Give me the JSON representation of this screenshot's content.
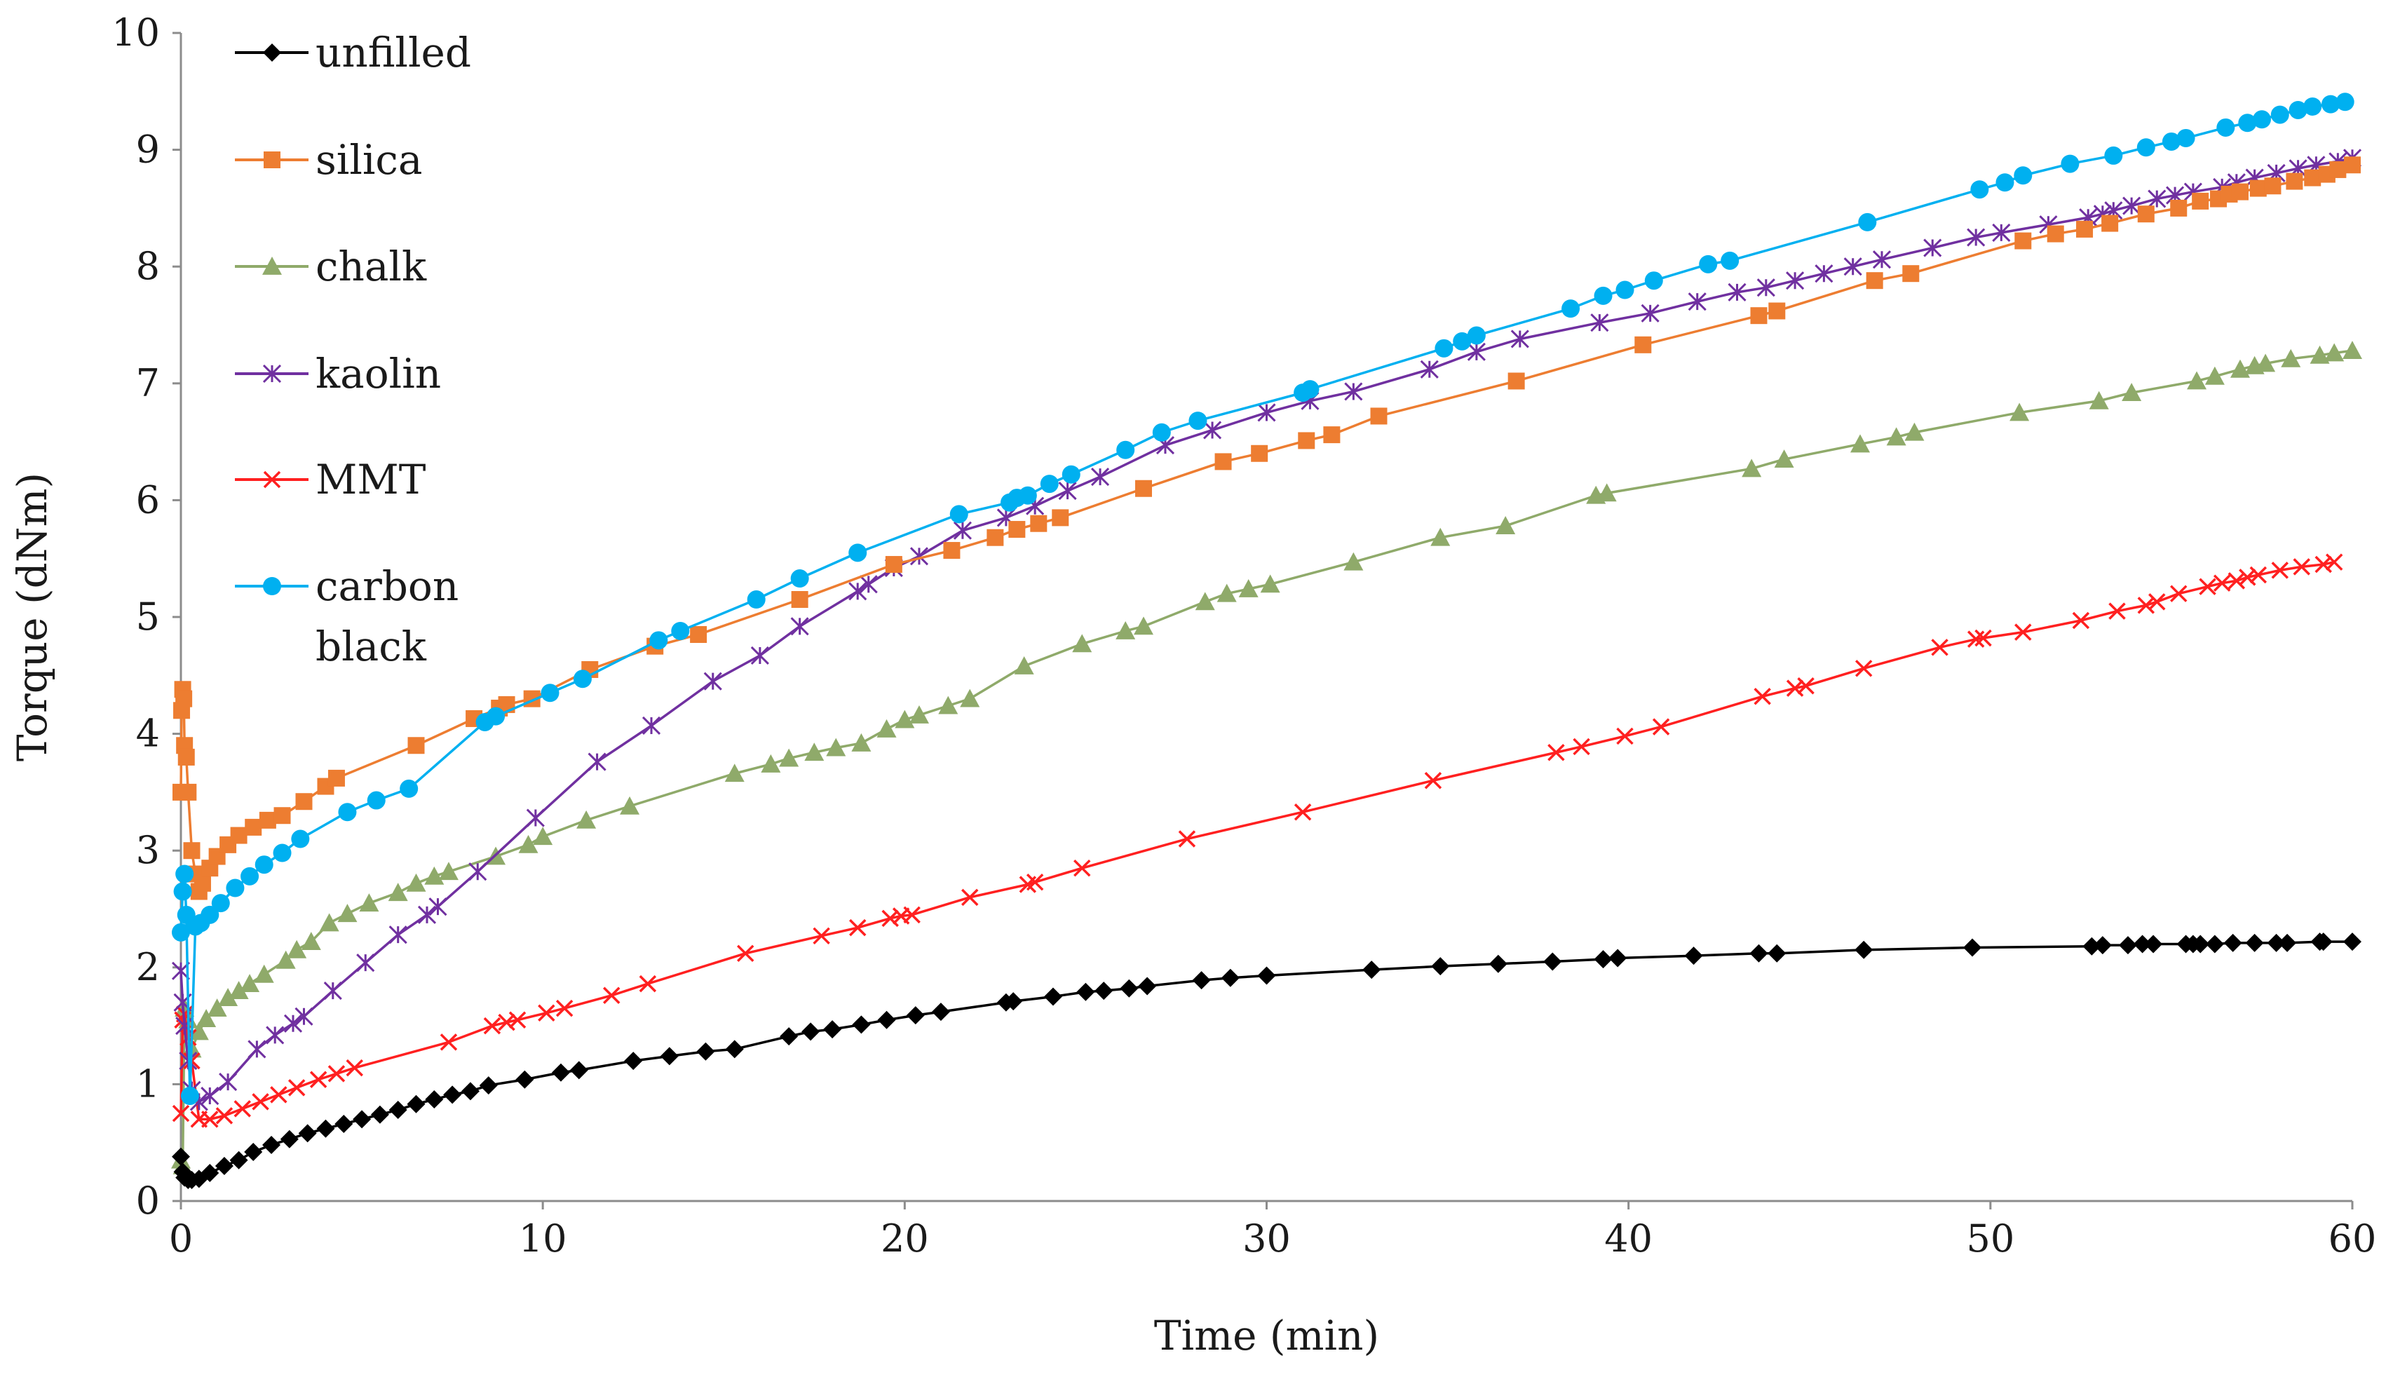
{
  "chart_data": {
    "type": "line",
    "title": "",
    "xlabel": "Time (min)",
    "ylabel": "Torque (dNm)",
    "xlim": [
      0,
      60
    ],
    "ylim": [
      0,
      10
    ],
    "xticks": [
      0,
      10,
      20,
      30,
      40,
      50,
      60
    ],
    "yticks": [
      0,
      1,
      2,
      3,
      4,
      5,
      6,
      7,
      8,
      9,
      10
    ],
    "grid": false,
    "legend_position": "top-left",
    "series": [
      {
        "name": "unfilled",
        "color": "#000000",
        "marker": "diamond",
        "x": [
          0,
          0.05,
          0.1,
          0.2,
          0.3,
          0.5,
          0.8,
          1.2,
          1.6,
          2.0,
          2.5,
          3.0,
          3.5,
          4.0,
          4.5,
          5.0,
          5.5,
          6.0,
          6.5,
          7.0,
          7.5,
          8.0,
          8.5,
          9.5,
          10.5,
          11.0,
          12.5,
          13.5,
          14.5,
          15.3,
          16.8,
          17.4,
          18.0,
          18.8,
          19.5,
          20.3,
          21.0,
          22.8,
          23.0,
          24.1,
          25.0,
          25.5,
          26.2,
          26.7,
          28.2,
          29.0,
          30.0,
          32.9,
          34.8,
          36.4,
          37.9,
          39.3,
          39.7,
          41.8,
          43.6,
          44.1,
          46.5,
          49.5,
          52.8,
          53.1,
          53.8,
          54.2,
          54.5,
          55.4,
          55.6,
          55.8,
          56.2,
          56.7,
          57.3,
          57.9,
          58.2,
          59.1,
          59.2,
          60.0
        ],
        "values": [
          0.38,
          0.25,
          0.2,
          0.18,
          0.18,
          0.19,
          0.24,
          0.3,
          0.35,
          0.42,
          0.48,
          0.53,
          0.58,
          0.62,
          0.66,
          0.7,
          0.74,
          0.78,
          0.83,
          0.87,
          0.91,
          0.94,
          0.99,
          1.04,
          1.1,
          1.12,
          1.2,
          1.24,
          1.28,
          1.3,
          1.41,
          1.45,
          1.47,
          1.51,
          1.55,
          1.59,
          1.62,
          1.7,
          1.71,
          1.75,
          1.79,
          1.8,
          1.82,
          1.84,
          1.89,
          1.91,
          1.93,
          1.98,
          2.01,
          2.03,
          2.05,
          2.07,
          2.08,
          2.1,
          2.12,
          2.12,
          2.15,
          2.17,
          2.18,
          2.19,
          2.19,
          2.2,
          2.2,
          2.2,
          2.2,
          2.2,
          2.2,
          2.21,
          2.21,
          2.21,
          2.21,
          2.22,
          2.22,
          2.22
        ]
      },
      {
        "name": "silica",
        "color": "#ED7D31",
        "marker": "square",
        "x": [
          0,
          0.02,
          0.05,
          0.08,
          0.1,
          0.15,
          0.2,
          0.3,
          0.4,
          0.5,
          0.6,
          0.8,
          1.0,
          1.3,
          1.6,
          2.0,
          2.4,
          2.8,
          3.4,
          4.0,
          4.3,
          6.5,
          8.1,
          8.8,
          9.0,
          9.7,
          11.3,
          13.1,
          14.3,
          17.1,
          19.7,
          21.3,
          22.5,
          23.1,
          23.7,
          24.3,
          26.6,
          28.8,
          29.8,
          31.1,
          31.8,
          33.1,
          36.9,
          40.4,
          43.6,
          44.1,
          46.8,
          47.8,
          50.9,
          51.8,
          52.6,
          53.3,
          54.3,
          55.2,
          55.8,
          56.3,
          56.6,
          56.9,
          57.4,
          57.8,
          58.4,
          58.9,
          59.3,
          59.6,
          60.0
        ],
        "values": [
          3.5,
          4.2,
          4.38,
          4.3,
          3.9,
          3.8,
          3.5,
          3.0,
          2.8,
          2.65,
          2.72,
          2.85,
          2.95,
          3.05,
          3.13,
          3.2,
          3.26,
          3.3,
          3.42,
          3.55,
          3.62,
          3.9,
          4.13,
          4.22,
          4.25,
          4.3,
          4.55,
          4.75,
          4.85,
          5.15,
          5.45,
          5.57,
          5.68,
          5.75,
          5.8,
          5.85,
          6.1,
          6.33,
          6.4,
          6.51,
          6.56,
          6.72,
          7.02,
          7.33,
          7.58,
          7.62,
          7.88,
          7.94,
          8.22,
          8.28,
          8.32,
          8.37,
          8.45,
          8.5,
          8.56,
          8.58,
          8.62,
          8.64,
          8.67,
          8.69,
          8.73,
          8.76,
          8.79,
          8.83,
          8.87
        ]
      },
      {
        "name": "chalk",
        "color": "#8FAA6A",
        "marker": "triangle",
        "x": [
          0,
          0.05,
          0.1,
          0.2,
          0.3,
          0.5,
          0.7,
          1.0,
          1.3,
          1.6,
          1.9,
          2.3,
          2.9,
          3.2,
          3.6,
          4.1,
          4.6,
          5.2,
          6.0,
          6.5,
          7.0,
          7.4,
          8.7,
          9.6,
          10.0,
          11.2,
          12.4,
          15.3,
          16.3,
          16.8,
          17.5,
          18.1,
          18.8,
          19.5,
          20.0,
          20.4,
          21.2,
          21.8,
          23.3,
          24.9,
          26.1,
          26.6,
          28.3,
          28.9,
          29.5,
          30.1,
          32.4,
          34.8,
          36.6,
          39.1,
          39.4,
          43.4,
          44.3,
          46.4,
          47.4,
          47.9,
          50.8,
          53.0,
          53.9,
          55.7,
          56.2,
          56.9,
          57.3,
          57.6,
          58.3,
          59.1,
          59.5,
          60.0
        ],
        "values": [
          0.35,
          0.3,
          1.65,
          1.55,
          1.3,
          1.45,
          1.56,
          1.65,
          1.74,
          1.8,
          1.86,
          1.94,
          2.06,
          2.15,
          2.22,
          2.38,
          2.46,
          2.55,
          2.64,
          2.72,
          2.78,
          2.82,
          2.95,
          3.05,
          3.12,
          3.26,
          3.38,
          3.66,
          3.74,
          3.79,
          3.84,
          3.88,
          3.92,
          4.04,
          4.12,
          4.16,
          4.24,
          4.3,
          4.58,
          4.77,
          4.88,
          4.92,
          5.13,
          5.2,
          5.24,
          5.28,
          5.47,
          5.68,
          5.78,
          6.04,
          6.06,
          6.27,
          6.35,
          6.48,
          6.54,
          6.58,
          6.75,
          6.85,
          6.92,
          7.02,
          7.06,
          7.12,
          7.15,
          7.17,
          7.21,
          7.24,
          7.26,
          7.28
        ]
      },
      {
        "name": "kaolin",
        "color": "#7030A0",
        "marker": "asterisk",
        "x": [
          0,
          0.05,
          0.1,
          0.2,
          0.3,
          0.5,
          0.8,
          1.3,
          2.1,
          2.6,
          3.1,
          3.4,
          4.2,
          5.1,
          6.0,
          6.8,
          7.1,
          8.2,
          9.8,
          11.5,
          13.0,
          14.7,
          16.0,
          17.1,
          18.7,
          19.0,
          19.7,
          20.4,
          21.6,
          22.8,
          23.6,
          24.5,
          25.4,
          27.2,
          28.5,
          30.0,
          31.2,
          32.4,
          34.5,
          35.8,
          37.0,
          39.2,
          40.6,
          41.9,
          43.0,
          43.8,
          44.6,
          45.4,
          46.2,
          47.0,
          48.4,
          49.6,
          50.3,
          51.6,
          52.7,
          53.1,
          53.4,
          53.9,
          54.6,
          55.1,
          55.6,
          56.4,
          56.8,
          57.3,
          57.9,
          58.5,
          59.0,
          59.6,
          60.0
        ],
        "values": [
          1.97,
          1.7,
          1.5,
          1.2,
          0.95,
          0.85,
          0.9,
          1.02,
          1.3,
          1.42,
          1.52,
          1.58,
          1.8,
          2.04,
          2.28,
          2.45,
          2.52,
          2.82,
          3.28,
          3.76,
          4.07,
          4.45,
          4.67,
          4.92,
          5.22,
          5.28,
          5.42,
          5.52,
          5.74,
          5.85,
          5.95,
          6.08,
          6.2,
          6.47,
          6.6,
          6.75,
          6.85,
          6.93,
          7.12,
          7.27,
          7.38,
          7.52,
          7.6,
          7.7,
          7.78,
          7.82,
          7.88,
          7.94,
          8.0,
          8.06,
          8.16,
          8.25,
          8.29,
          8.36,
          8.42,
          8.45,
          8.48,
          8.52,
          8.58,
          8.61,
          8.64,
          8.68,
          8.72,
          8.76,
          8.8,
          8.84,
          8.87,
          8.9,
          8.93
        ]
      },
      {
        "name": "MMT",
        "color": "#FF2020",
        "marker": "x",
        "x": [
          0,
          0.05,
          0.1,
          0.2,
          0.3,
          0.5,
          0.8,
          1.2,
          1.7,
          2.2,
          2.7,
          3.2,
          3.8,
          4.3,
          4.8,
          7.4,
          8.6,
          9.0,
          9.3,
          10.1,
          10.6,
          11.9,
          12.9,
          15.6,
          17.7,
          18.7,
          19.6,
          19.9,
          20.2,
          21.8,
          23.4,
          23.6,
          24.9,
          27.8,
          31.0,
          34.6,
          38.0,
          38.7,
          39.9,
          40.9,
          43.7,
          44.6,
          44.9,
          46.5,
          48.6,
          49.6,
          49.8,
          50.9,
          52.5,
          53.5,
          54.3,
          54.6,
          55.2,
          56.0,
          56.4,
          56.8,
          57.1,
          57.4,
          58.0,
          58.6,
          59.2,
          59.5
        ],
        "values": [
          0.75,
          1.55,
          1.6,
          1.4,
          1.2,
          0.7,
          0.7,
          0.73,
          0.79,
          0.85,
          0.91,
          0.97,
          1.04,
          1.09,
          1.14,
          1.36,
          1.5,
          1.53,
          1.55,
          1.61,
          1.65,
          1.76,
          1.86,
          2.12,
          2.27,
          2.34,
          2.42,
          2.44,
          2.45,
          2.6,
          2.71,
          2.73,
          2.85,
          3.1,
          3.33,
          3.6,
          3.84,
          3.89,
          3.98,
          4.06,
          4.32,
          4.39,
          4.41,
          4.56,
          4.74,
          4.81,
          4.82,
          4.87,
          4.97,
          5.05,
          5.1,
          5.13,
          5.2,
          5.26,
          5.29,
          5.31,
          5.34,
          5.36,
          5.4,
          5.43,
          5.45,
          5.47
        ]
      },
      {
        "name": "carbon black",
        "color": "#00B0F0",
        "marker": "circle",
        "x": [
          0,
          0.05,
          0.1,
          0.15,
          0.25,
          0.4,
          0.55,
          0.8,
          1.1,
          1.5,
          1.9,
          2.3,
          2.8,
          3.3,
          4.6,
          5.4,
          6.3,
          8.4,
          8.7,
          10.2,
          11.1,
          13.2,
          13.8,
          15.9,
          17.1,
          18.7,
          21.5,
          22.9,
          23.1,
          23.4,
          24.0,
          24.6,
          26.1,
          27.1,
          28.1,
          31.0,
          31.2,
          34.9,
          35.4,
          35.8,
          38.4,
          39.3,
          39.9,
          40.7,
          42.2,
          42.8,
          46.6,
          49.7,
          50.4,
          50.9,
          52.2,
          53.4,
          54.3,
          55.0,
          55.4,
          56.5,
          57.1,
          57.5,
          58.0,
          58.5,
          58.9,
          59.4,
          59.8
        ],
        "values": [
          2.3,
          2.65,
          2.8,
          2.45,
          0.9,
          2.35,
          2.38,
          2.45,
          2.55,
          2.68,
          2.78,
          2.88,
          2.98,
          3.1,
          3.33,
          3.43,
          3.53,
          4.1,
          4.15,
          4.35,
          4.47,
          4.8,
          4.88,
          5.15,
          5.33,
          5.55,
          5.88,
          5.98,
          6.02,
          6.04,
          6.14,
          6.22,
          6.43,
          6.58,
          6.68,
          6.92,
          6.95,
          7.3,
          7.36,
          7.41,
          7.64,
          7.75,
          7.8,
          7.88,
          8.02,
          8.05,
          8.38,
          8.66,
          8.72,
          8.78,
          8.88,
          8.95,
          9.02,
          9.07,
          9.1,
          9.19,
          9.23,
          9.26,
          9.3,
          9.34,
          9.37,
          9.39,
          9.41
        ]
      }
    ]
  }
}
